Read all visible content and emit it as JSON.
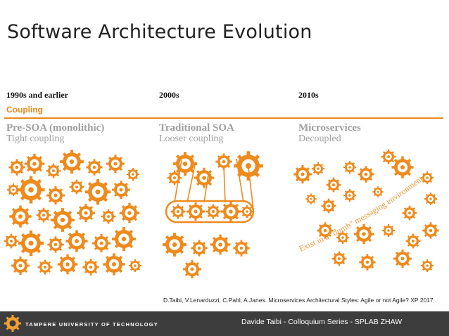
{
  "slide": {
    "title": "Software Architecture Evolution",
    "coupling_label": "Coupling",
    "columns": [
      {
        "era": "1990s and earlier",
        "heading": "Pre-SOA (monolithic)",
        "subheading": "Tight coupling"
      },
      {
        "era": "2000s",
        "heading": "Traditional SOA",
        "subheading": "Looser coupling"
      },
      {
        "era": "2010s",
        "heading": "Microservices",
        "subheading": "Decoupled"
      }
    ],
    "curve_text": "Exist in a \"dumb\" messaging environment",
    "citation": "D.Taibi, V.Lenarduzzi, C.Pahl, A.Janes. Microservices Architectural Styles: Agile or not Agile? XP 2017"
  },
  "footer": {
    "university": "TAMPERE UNIVERSITY OF TECHNOLOGY",
    "presenter": "Davide Taibi - Colloquium Series - SPLAB ZHAW"
  },
  "colors": {
    "accent": "#e8891a",
    "footer_bg": "#3d3d3d",
    "muted_text": "#a0a0a0"
  },
  "icons": [
    "gear-icon",
    "university-logo-icon"
  ]
}
